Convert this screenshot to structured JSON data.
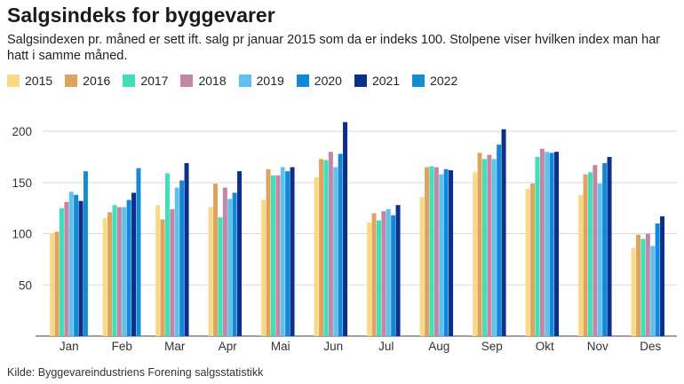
{
  "title": "Salgsindeks for byggevarer",
  "subtitle": "Salgsindexen pr. måned er sett ift. salg pr januar 2015 som da er indeks 100. Stolpene viser hvilken index man har hatt i samme måned.",
  "source": "Kilde: Byggevareindustriens Forening salgsstatistikk",
  "chart_data": {
    "type": "bar",
    "categories": [
      "Jan",
      "Feb",
      "Mar",
      "Apr",
      "Mai",
      "Jun",
      "Jul",
      "Aug",
      "Sep",
      "Okt",
      "Nov",
      "Des"
    ],
    "ylim": [
      0,
      220
    ],
    "yticks": [
      50,
      100,
      150,
      200
    ],
    "grid": true,
    "legend_position": "top-left",
    "series": [
      {
        "name": "2015",
        "color": "#fad985",
        "values": [
          100,
          115,
          128,
          126,
          133,
          155,
          111,
          136,
          160,
          144,
          138,
          86
        ]
      },
      {
        "name": "2016",
        "color": "#e0a35e",
        "values": [
          102,
          121,
          114,
          149,
          163,
          173,
          120,
          165,
          179,
          149,
          158,
          99
        ]
      },
      {
        "name": "2017",
        "color": "#3fe0b9",
        "values": [
          125,
          128,
          159,
          116,
          157,
          172,
          113,
          166,
          173,
          175,
          160,
          95
        ]
      },
      {
        "name": "2018",
        "color": "#c286a6",
        "values": [
          131,
          126,
          124,
          145,
          157,
          180,
          122,
          165,
          177,
          183,
          167,
          100
        ]
      },
      {
        "name": "2019",
        "color": "#5fc1ec",
        "values": [
          141,
          126,
          145,
          134,
          165,
          165,
          124,
          158,
          173,
          180,
          149,
          88
        ]
      },
      {
        "name": "2020",
        "color": "#1188d9",
        "values": [
          138,
          133,
          152,
          140,
          161,
          178,
          118,
          163,
          187,
          179,
          169,
          110
        ]
      },
      {
        "name": "2021",
        "color": "#0b2f8a",
        "values": [
          132,
          140,
          169,
          161,
          165,
          209,
          128,
          162,
          202,
          180,
          175,
          117
        ]
      },
      {
        "name": "2022",
        "color": "#158bd3",
        "values": [
          161,
          164,
          null,
          null,
          null,
          null,
          null,
          null,
          null,
          null,
          null,
          null
        ]
      }
    ]
  }
}
